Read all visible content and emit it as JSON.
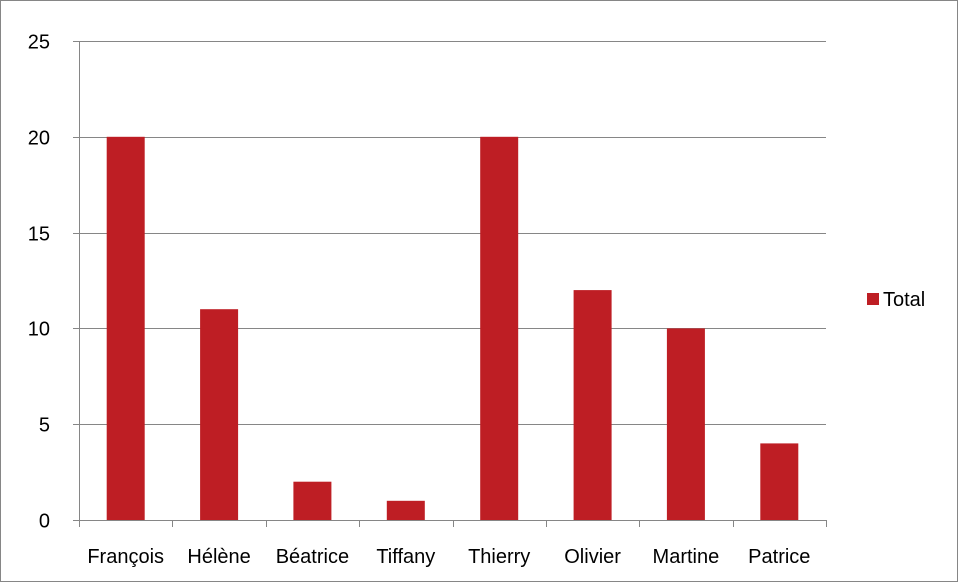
{
  "chart_data": {
    "type": "bar",
    "categories": [
      "François",
      "Hélène",
      "Béatrice",
      "Tiffany",
      "Thierry",
      "Olivier",
      "Martine",
      "Patrice"
    ],
    "series": [
      {
        "name": "Total",
        "values": [
          20,
          11,
          2,
          1,
          20,
          12,
          10,
          4
        ],
        "color": "#be1e24"
      }
    ],
    "title": "",
    "xlabel": "",
    "ylabel": "",
    "ylim": [
      0,
      25
    ],
    "yticks": [
      0,
      5,
      10,
      15,
      20,
      25
    ],
    "grid": true,
    "legend_position": "right"
  },
  "colors": {
    "gridline": "#868686",
    "axis": "#868686",
    "frame": "#868686"
  }
}
